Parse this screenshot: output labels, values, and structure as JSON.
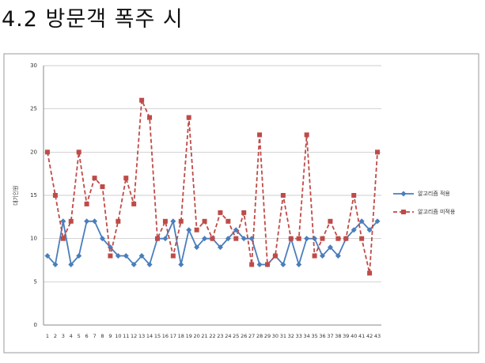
{
  "title": "4.2 방문객 폭주 시",
  "chart_data": {
    "type": "line",
    "y_label": "대기인원",
    "categories": [
      "1",
      "2",
      "3",
      "4",
      "5",
      "6",
      "7",
      "8",
      "9",
      "10",
      "11",
      "12",
      "13",
      "14",
      "15",
      "16",
      "17",
      "18",
      "19",
      "20",
      "21",
      "22",
      "23",
      "24",
      "25",
      "26",
      "27",
      "28",
      "29",
      "30",
      "31",
      "32",
      "33",
      "34",
      "35",
      "36",
      "37",
      "38",
      "39",
      "40",
      "41",
      "42",
      "43"
    ],
    "series": [
      {
        "name": "알고리즘 적용",
        "color": "#4a7ebb",
        "dash": false,
        "marker": "diamond",
        "values": [
          8,
          7,
          12,
          7,
          8,
          12,
          12,
          10,
          9,
          8,
          8,
          7,
          8,
          7,
          10,
          10,
          12,
          7,
          11,
          9,
          10,
          10,
          9,
          10,
          11,
          10,
          10,
          7,
          7,
          8,
          7,
          10,
          7,
          10,
          10,
          8,
          9,
          8,
          10,
          11,
          12,
          11,
          12
        ]
      },
      {
        "name": "알고리즘 미적용",
        "color": "#be4b48",
        "dash": true,
        "marker": "square",
        "values": [
          20,
          15,
          10,
          12,
          20,
          14,
          17,
          16,
          8,
          12,
          17,
          14,
          26,
          24,
          10,
          12,
          8,
          12,
          24,
          11,
          12,
          10,
          13,
          12,
          10,
          13,
          7,
          22,
          7,
          8,
          15,
          10,
          10,
          22,
          8,
          10,
          12,
          10,
          10,
          15,
          10,
          6,
          20
        ]
      }
    ],
    "ylim": [
      0,
      30
    ],
    "yticks": [
      0,
      5,
      10,
      15,
      20,
      25,
      30
    ],
    "grid": true,
    "legend": "right"
  }
}
